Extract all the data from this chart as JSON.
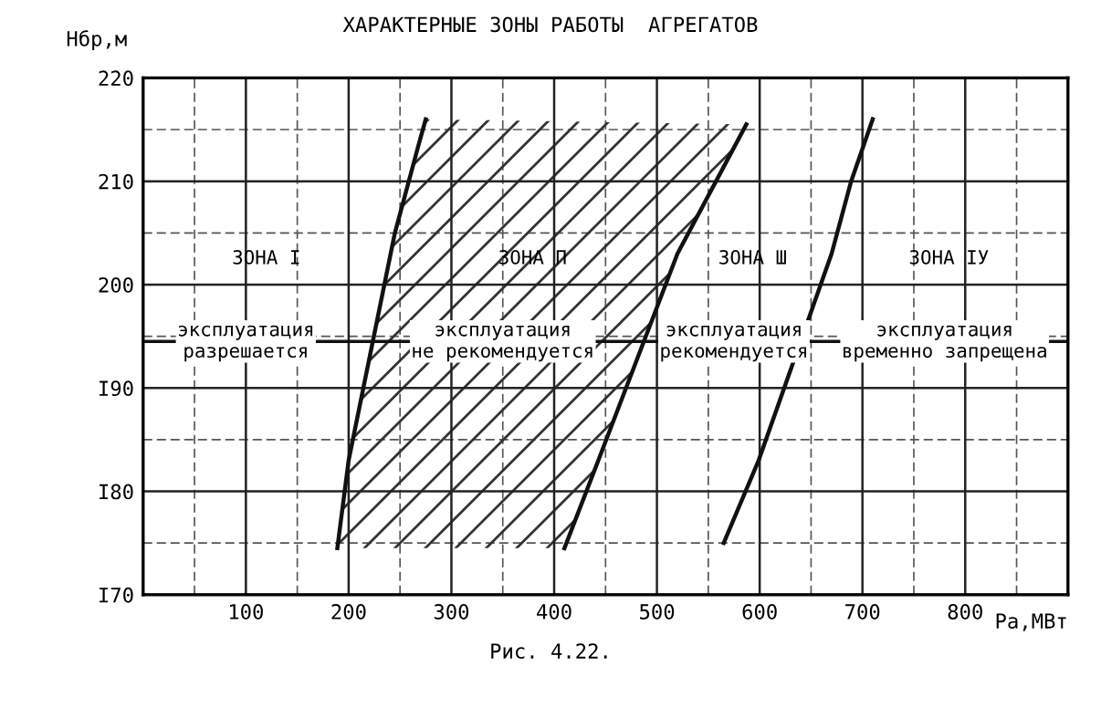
{
  "chart_data": {
    "type": "line",
    "title": "ХАРАКТЕРНЫЕ ЗОНЫ РАБОТЫ  АГРЕГАТОВ",
    "ylabel": "Нбр,м",
    "xlabel": "Ра,МВт",
    "xlim": [
      0,
      900
    ],
    "xticks": [
      100,
      200,
      300,
      400,
      500,
      600,
      700,
      800
    ],
    "ylim": [
      170,
      220
    ],
    "yticks": [
      {
        "value": 170,
        "label": "I70"
      },
      {
        "value": 180,
        "label": "I80"
      },
      {
        "value": 190,
        "label": "I90"
      },
      200,
      210,
      220
    ],
    "grid": true,
    "legend": false,
    "marker": "none",
    "line_style": "solid",
    "series": [
      {
        "color": "#111111",
        "x": [
          189,
          200,
          245,
          268,
          275
        ],
        "values": [
          174.5,
          183,
          205,
          213.5,
          216
        ]
      },
      {
        "color": "#111111",
        "x": [
          410,
          443,
          520,
          587
        ],
        "values": [
          174.5,
          183,
          203,
          215.5
        ]
      },
      {
        "color": "#111111",
        "x": [
          565,
          599,
          670,
          689,
          710
        ],
        "values": [
          175,
          183,
          203,
          210,
          216
        ]
      }
    ],
    "ref_lines": [
      {
        "axis": "y",
        "value": 194.5,
        "color": "#111111"
      }
    ],
    "annotations": [
      "ЗОНА I",
      "ЗОНА П",
      "ЗОНА Ш",
      "ЗОНА IУ",
      {
        "text": "эксплуатация\nразрешается",
        "x": 100,
        "y": 194.5
      },
      {
        "text": "эксплуатация\nне рекомендуется",
        "x": 350,
        "y": 194.5
      },
      {
        "text": "эксплуатация\nрекомендуется",
        "x": 575,
        "y": 194.5
      },
      {
        "text": "эксплуатация\nвременно запрещена",
        "x": 780,
        "y": 194.5
      },
      "Рис. 4.22."
    ]
  }
}
